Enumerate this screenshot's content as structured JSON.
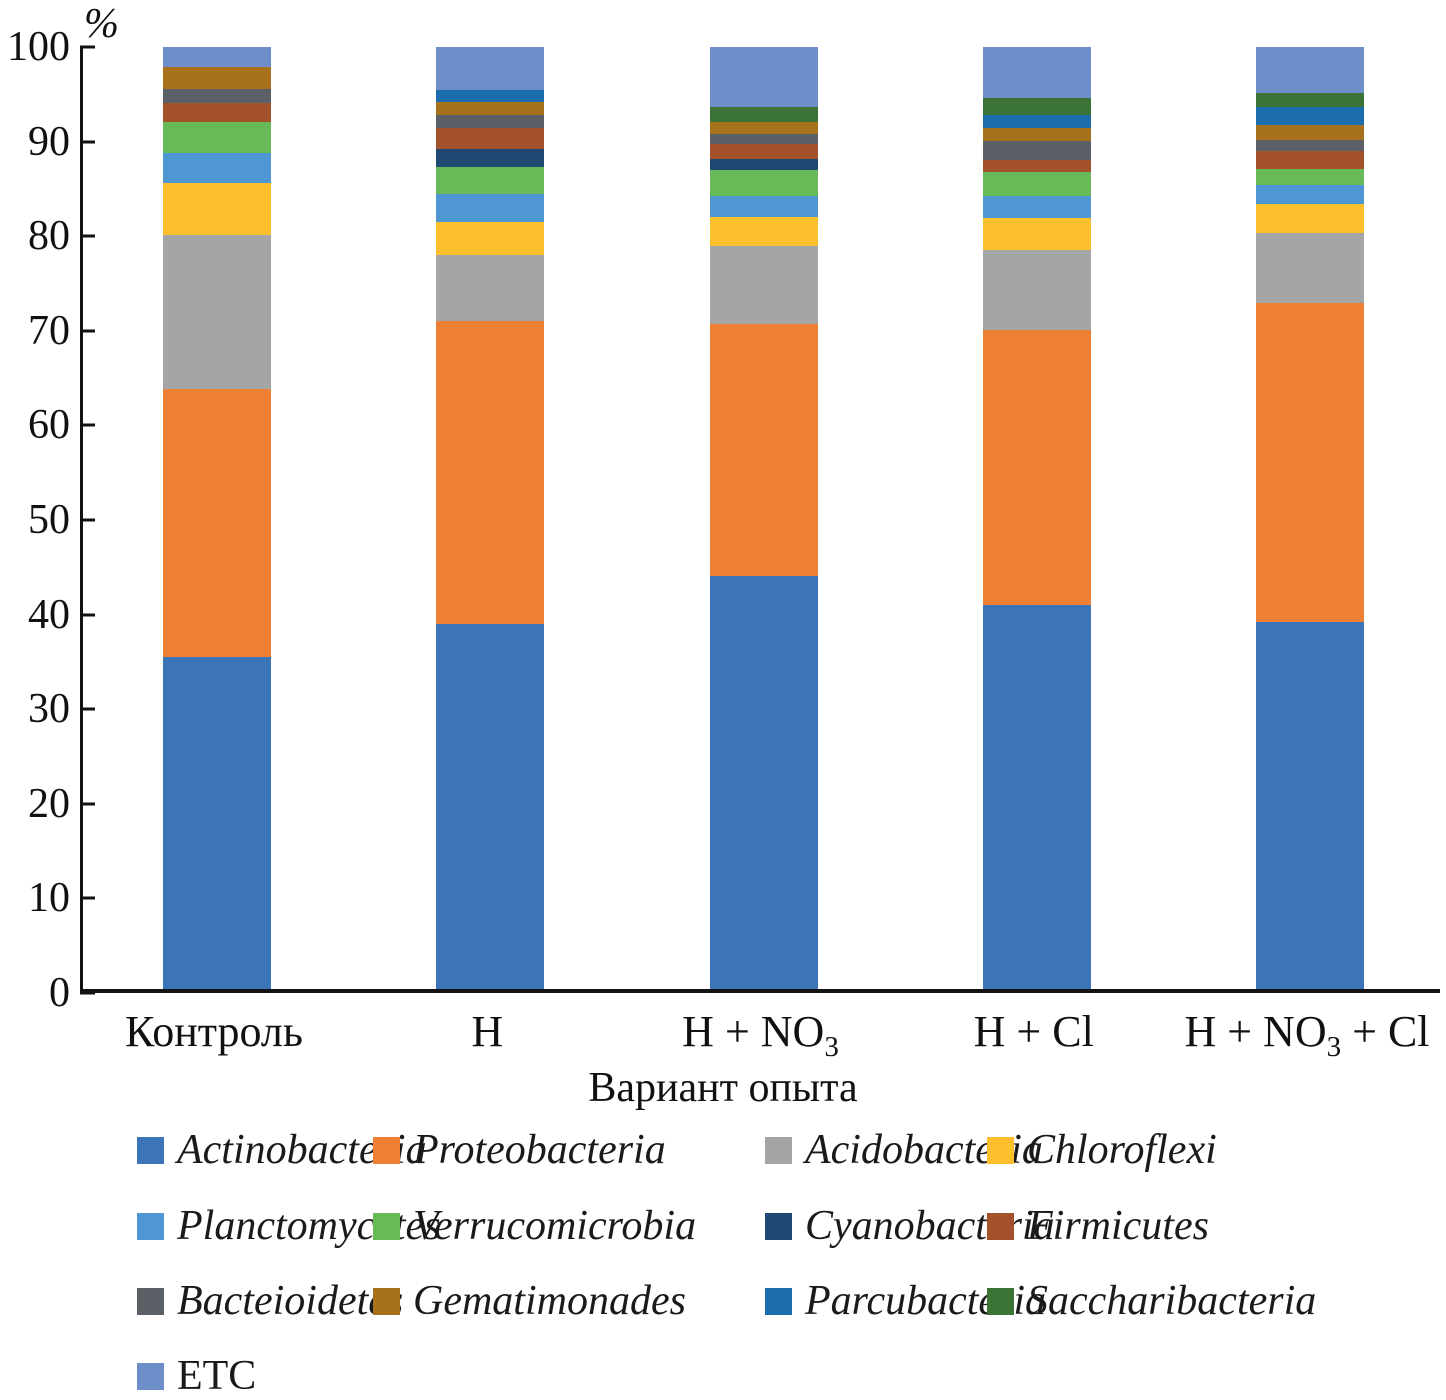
{
  "chart_data": {
    "type": "bar",
    "stacked": true,
    "orientation": "vertical",
    "ylabel": "%",
    "xlabel": "Вариант опыта",
    "ylim": [
      0,
      100
    ],
    "y_ticks": [
      0,
      10,
      20,
      30,
      40,
      50,
      60,
      70,
      80,
      90,
      100
    ],
    "grid": false,
    "legend_position": "bottom",
    "categories": [
      "Контроль",
      "Н",
      "Н + NO₃",
      "Н + Cl",
      "Н + NO₃ + Cl"
    ],
    "series": [
      {
        "name": "Actinobacteria",
        "color": "#3B74B7",
        "values": [
          35.2,
          38.8,
          43.8,
          40.8,
          39.0
        ]
      },
      {
        "name": "Proteobacteria",
        "color": "#ED8034",
        "values": [
          28.5,
          32.1,
          26.8,
          29.2,
          33.8
        ]
      },
      {
        "name": "Acidobacteria",
        "color": "#A3A5A6",
        "values": [
          16.3,
          7.0,
          8.3,
          8.4,
          7.5
        ]
      },
      {
        "name": "Chloroflexi",
        "color": "#FCC02C",
        "values": [
          5.6,
          3.5,
          3.1,
          3.4,
          3.0
        ]
      },
      {
        "name": "Planctomycetes",
        "color": "#4E97D2",
        "values": [
          3.1,
          3.0,
          2.2,
          2.4,
          2.1
        ]
      },
      {
        "name": "Verrucomicrobia",
        "color": "#67BA57",
        "values": [
          3.3,
          2.9,
          2.7,
          2.5,
          1.7
        ]
      },
      {
        "name": "Cyanobacteria",
        "color": "#1F4973",
        "values": [
          0.0,
          1.9,
          1.2,
          0.0,
          0.0
        ]
      },
      {
        "name": "Firmicutes",
        "color": "#A3522C",
        "values": [
          2.1,
          2.2,
          1.6,
          1.3,
          1.9
        ]
      },
      {
        "name": "Bacteioidetes",
        "color": "#5A6065",
        "values": [
          1.4,
          1.4,
          1.1,
          2.0,
          1.1
        ]
      },
      {
        "name": "Gematimonades",
        "color": "#A8721D",
        "values": [
          2.4,
          1.4,
          1.2,
          1.4,
          1.6
        ]
      },
      {
        "name": "Parcubacteria",
        "color": "#1C6DAE",
        "values": [
          0.0,
          1.2,
          0.0,
          1.4,
          1.9
        ]
      },
      {
        "name": "Saccharibacteria",
        "color": "#3B7337",
        "values": [
          0.0,
          0.0,
          1.6,
          1.8,
          1.5
        ]
      },
      {
        "name": "ETC",
        "color": "#6D8EC8",
        "values": [
          2.1,
          4.6,
          6.4,
          5.4,
          4.9
        ]
      }
    ]
  }
}
